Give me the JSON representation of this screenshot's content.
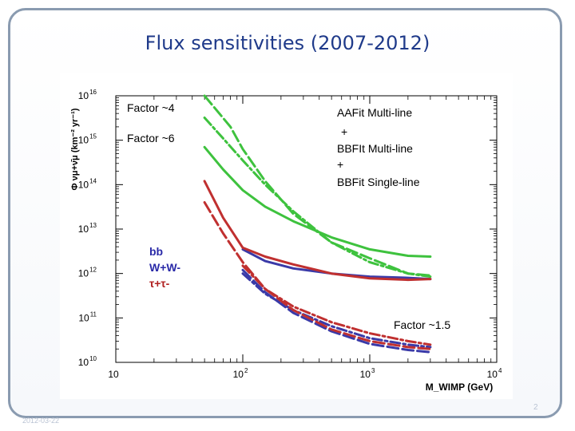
{
  "slide": {
    "title": "Flux sensitivities (2007-2012)",
    "footer_date": "2012-03-22",
    "page_number": "2"
  },
  "chart_data": {
    "type": "line",
    "title": "Flux sensitivities (2007-2012)",
    "xlabel": "M_WIMP (GeV)",
    "ylabel": "Φ νμ+ν̄μ (km⁻² yr⁻¹)",
    "xscale": "log",
    "yscale": "log",
    "xlim": [
      10,
      10000
    ],
    "ylim": [
      10000000000,
      10000000000000000
    ],
    "x_tick_labels": [
      {
        "base": "10",
        "exp": ""
      },
      {
        "base": "10",
        "exp": "2"
      },
      {
        "base": "10",
        "exp": "3"
      },
      {
        "base": "10",
        "exp": "4"
      }
    ],
    "y_tick_labels": [
      {
        "base": "10",
        "exp": "10"
      },
      {
        "base": "10",
        "exp": "11"
      },
      {
        "base": "10",
        "exp": "12"
      },
      {
        "base": "10",
        "exp": "13"
      },
      {
        "base": "10",
        "exp": "14"
      },
      {
        "base": "10",
        "exp": "15"
      },
      {
        "base": "10",
        "exp": "16"
      }
    ],
    "annotations": {
      "factor4": "Factor ~4",
      "factor6": "Factor ~6",
      "factor15": "Factor ~1.5",
      "methods": [
        "AAFit Multi-line",
        "+",
        "BBFIt Multi-line",
        "+",
        "BBFit Single-line"
      ],
      "channels": [
        {
          "label": "bb",
          "color": "#2a2aa8"
        },
        {
          "label": "W+W-",
          "color": "#2a2aa8"
        },
        {
          "label": "τ+τ-",
          "color": "#b02020"
        }
      ]
    },
    "series": [
      {
        "name": "AAFit bb",
        "color": "#3ec23e",
        "style": "dashed",
        "x": [
          50,
          80,
          100,
          150,
          250,
          500,
          1000,
          2000,
          3000
        ],
        "y": [
          1e+16,
          2000000000000000.0,
          630000000000000.0,
          120000000000000.0,
          22000000000000.0,
          5000000000000.0,
          2200000000000.0,
          1000000000000.0,
          900000000000.0
        ]
      },
      {
        "name": "AAFit W+W-",
        "color": "#3ec23e",
        "style": "dashdot",
        "x": [
          50,
          70,
          100,
          150,
          250,
          500,
          1000,
          2000,
          3000
        ],
        "y": [
          3200000000000000.0,
          1100000000000000.0,
          350000000000000.0,
          100000000000000.0,
          25000000000000.0,
          5000000000000.0,
          1800000000000.0,
          1000000000000.0,
          850000000000.0
        ]
      },
      {
        "name": "AAFit τ+τ-",
        "color": "#3ec23e",
        "style": "solid",
        "x": [
          50,
          70,
          100,
          150,
          250,
          500,
          1000,
          2000,
          3000
        ],
        "y": [
          700000000000000.0,
          220000000000000.0,
          75000000000000.0,
          32000000000000.0,
          15000000000000.0,
          6500000000000.0,
          3500000000000.0,
          2500000000000.0,
          2400000000000.0
        ]
      },
      {
        "name": "BBFit multi-line bb",
        "color": "#3a3aa8",
        "style": "solid",
        "x": [
          100,
          150,
          250,
          500,
          1000,
          2000,
          3000
        ],
        "y": [
          3500000000000.0,
          1900000000000.0,
          1300000000000.0,
          1000000000000.0,
          850000000000.0,
          800000000000.0,
          750000000000.0
        ]
      },
      {
        "name": "BBFit multi-line τ+τ-",
        "color": "#c03030",
        "style": "solid",
        "x": [
          50,
          70,
          100,
          150,
          250,
          500,
          1000,
          2000,
          3000
        ],
        "y": [
          120000000000000.0,
          18000000000000.0,
          3800000000000.0,
          2400000000000.0,
          1600000000000.0,
          1000000000000.0,
          780000000000.0,
          720000000000.0,
          750000000000.0
        ]
      },
      {
        "name": "BBFit single-line bb",
        "color": "#3a3aa8",
        "style": "dashed",
        "x": [
          100,
          150,
          250,
          500,
          1000,
          2000,
          3000
        ],
        "y": [
          1200000000000.0,
          380000000000.0,
          130000000000.0,
          50000000000.0,
          26000000000.0,
          19000000000.0,
          17000000000.0
        ]
      },
      {
        "name": "BBFit single-line W+W-",
        "color": "#3a3aa8",
        "style": "dashdot",
        "x": [
          100,
          150,
          250,
          500,
          1000,
          2000,
          3000
        ],
        "y": [
          1000000000000.0,
          350000000000.0,
          150000000000.0,
          65000000000.0,
          35000000000.0,
          25000000000.0,
          22000000000.0
        ]
      },
      {
        "name": "BBFit single-line τ+τ-",
        "color": "#c03030",
        "style": "dashed",
        "x": [
          50,
          70,
          100,
          150,
          250,
          500,
          1000,
          2000,
          3000
        ],
        "y": [
          40000000000000.0,
          8000000000000.0,
          1800000000000.0,
          450000000000.0,
          150000000000.0,
          55000000000.0,
          30000000000.0,
          22000000000.0,
          20000000000.0
        ]
      },
      {
        "name": "BBFit single-line W+W- τ",
        "color": "#c03030",
        "style": "dashdot",
        "x": [
          100,
          150,
          250,
          500,
          1000,
          2000,
          3000
        ],
        "y": [
          1500000000000.0,
          450000000000.0,
          180000000000.0,
          80000000000.0,
          45000000000.0,
          30000000000.0,
          25000000000.0
        ]
      }
    ]
  }
}
